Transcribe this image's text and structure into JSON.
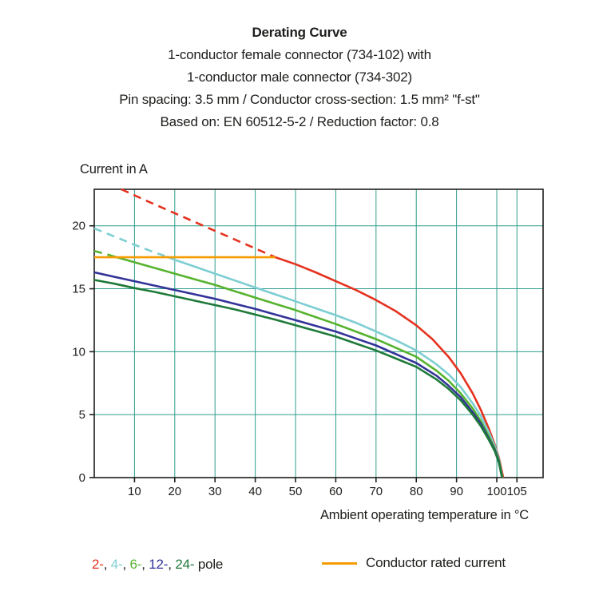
{
  "header": {
    "title": "Derating Curve",
    "subtitle_lines": [
      "1-conductor female connector (734-102) with",
      "1-conductor male connector (734-302)",
      "Pin spacing: 3.5 mm / Conductor cross-section: 1.5 mm² \"f-st\"",
      "Based on: EN 60512-5-2 / Reduction factor: 0.8"
    ]
  },
  "chart_data": {
    "type": "line",
    "title": "Derating Curve",
    "ylabel": "Current in A",
    "xlabel": "Ambient operating temperature in °C",
    "xlim": [
      0,
      111.5
    ],
    "ylim": [
      0,
      22.9
    ],
    "x_ticks": [
      10,
      20,
      30,
      40,
      50,
      60,
      70,
      80,
      90,
      100,
      105
    ],
    "y_ticks": [
      0,
      5,
      10,
      15,
      20
    ],
    "grid": true,
    "grid_color": "#2f9e8e",
    "axis_color": "#1d1d1b",
    "rated_current_a": 17.5,
    "series": [
      {
        "name": "2-pole",
        "color": "#e5321f",
        "segments": [
          {
            "style": "dashed",
            "points": [
              [
                6.7,
                22.9
              ],
              [
                15,
                21.7
              ],
              [
                25,
                20.3
              ],
              [
                35,
                18.9
              ],
              [
                45,
                17.5
              ]
            ]
          },
          {
            "style": "solid",
            "points": [
              [
                45,
                17.5
              ],
              [
                50,
                16.95
              ],
              [
                55,
                16.3
              ],
              [
                60,
                15.6
              ],
              [
                65,
                14.9
              ],
              [
                70,
                14.1
              ],
              [
                75,
                13.2
              ],
              [
                80,
                12.1
              ],
              [
                84,
                11.0
              ],
              [
                88,
                9.6
              ],
              [
                91,
                8.3
              ],
              [
                94,
                6.7
              ],
              [
                96,
                5.4
              ],
              [
                98,
                3.9
              ],
              [
                99.5,
                2.6
              ],
              [
                100.5,
                1.6
              ],
              [
                101.6,
                0
              ]
            ]
          }
        ]
      },
      {
        "name": "4-pole",
        "color": "#7dced2",
        "segments": [
          {
            "style": "dashed",
            "points": [
              [
                0,
                19.8
              ],
              [
                5,
                19.15
              ],
              [
                10,
                18.5
              ],
              [
                14,
                18.0
              ],
              [
                18,
                17.55
              ]
            ]
          },
          {
            "style": "solid",
            "points": [
              [
                18,
                17.55
              ],
              [
                20,
                17.3
              ],
              [
                25,
                16.75
              ],
              [
                30,
                16.2
              ],
              [
                35,
                15.65
              ],
              [
                40,
                15.1
              ],
              [
                45,
                14.55
              ],
              [
                50,
                14.0
              ],
              [
                55,
                13.45
              ],
              [
                60,
                12.9
              ],
              [
                65,
                12.3
              ],
              [
                70,
                11.6
              ],
              [
                75,
                10.9
              ],
              [
                80,
                10.1
              ],
              [
                85,
                9.0
              ],
              [
                88,
                8.2
              ],
              [
                91,
                7.2
              ],
              [
                94,
                5.9
              ],
              [
                96,
                4.9
              ],
              [
                98,
                3.6
              ],
              [
                99.5,
                2.5
              ],
              [
                100.5,
                1.5
              ],
              [
                101.4,
                0
              ]
            ]
          }
        ]
      },
      {
        "name": "6-pole",
        "color": "#56b32e",
        "segments": [
          {
            "style": "dashed",
            "points": [
              [
                0,
                18.0
              ],
              [
                3,
                17.75
              ],
              [
                5,
                17.55
              ]
            ]
          },
          {
            "style": "solid",
            "points": [
              [
                5,
                17.55
              ],
              [
                10,
                17.1
              ],
              [
                15,
                16.65
              ],
              [
                20,
                16.2
              ],
              [
                25,
                15.75
              ],
              [
                30,
                15.3
              ],
              [
                35,
                14.8
              ],
              [
                40,
                14.3
              ],
              [
                45,
                13.8
              ],
              [
                50,
                13.3
              ],
              [
                55,
                12.75
              ],
              [
                60,
                12.2
              ],
              [
                65,
                11.6
              ],
              [
                70,
                11.0
              ],
              [
                75,
                10.3
              ],
              [
                80,
                9.6
              ],
              [
                85,
                8.5
              ],
              [
                88,
                7.7
              ],
              [
                91,
                6.7
              ],
              [
                94,
                5.5
              ],
              [
                96,
                4.5
              ],
              [
                98,
                3.3
              ],
              [
                99.5,
                2.3
              ],
              [
                100.5,
                1.4
              ],
              [
                101.4,
                0
              ]
            ]
          }
        ]
      },
      {
        "name": "12-pole",
        "color": "#333399",
        "segments": [
          {
            "style": "solid",
            "points": [
              [
                0,
                16.3
              ],
              [
                5,
                15.95
              ],
              [
                10,
                15.6
              ],
              [
                15,
                15.25
              ],
              [
                20,
                14.9
              ],
              [
                25,
                14.55
              ],
              [
                30,
                14.2
              ],
              [
                35,
                13.8
              ],
              [
                40,
                13.4
              ],
              [
                45,
                12.95
              ],
              [
                50,
                12.5
              ],
              [
                55,
                12.05
              ],
              [
                60,
                11.6
              ],
              [
                65,
                11.05
              ],
              [
                70,
                10.5
              ],
              [
                75,
                9.8
              ],
              [
                80,
                9.1
              ],
              [
                85,
                8.1
              ],
              [
                88,
                7.3
              ],
              [
                91,
                6.4
              ],
              [
                94,
                5.2
              ],
              [
                96,
                4.3
              ],
              [
                98,
                3.1
              ],
              [
                99.5,
                2.2
              ],
              [
                100.5,
                1.3
              ],
              [
                101.3,
                0
              ]
            ]
          }
        ]
      },
      {
        "name": "24-pole",
        "color": "#1f7a3a",
        "segments": [
          {
            "style": "solid",
            "points": [
              [
                0,
                15.7
              ],
              [
                5,
                15.4
              ],
              [
                10,
                15.05
              ],
              [
                15,
                14.75
              ],
              [
                20,
                14.4
              ],
              [
                25,
                14.05
              ],
              [
                30,
                13.7
              ],
              [
                35,
                13.35
              ],
              [
                40,
                12.95
              ],
              [
                45,
                12.55
              ],
              [
                50,
                12.1
              ],
              [
                55,
                11.65
              ],
              [
                60,
                11.2
              ],
              [
                65,
                10.65
              ],
              [
                70,
                10.1
              ],
              [
                75,
                9.45
              ],
              [
                80,
                8.8
              ],
              [
                85,
                7.8
              ],
              [
                88,
                7.05
              ],
              [
                91,
                6.15
              ],
              [
                94,
                5.0
              ],
              [
                96,
                4.1
              ],
              [
                98,
                3.0
              ],
              [
                99.5,
                2.1
              ],
              [
                100.5,
                1.2
              ],
              [
                101.3,
                0
              ]
            ]
          }
        ]
      },
      {
        "name": "Conductor rated current",
        "color": "#f59c00",
        "segments": [
          {
            "style": "solid",
            "points": [
              [
                0,
                17.5
              ],
              [
                45,
                17.5
              ]
            ]
          }
        ]
      }
    ]
  },
  "legend": {
    "pole_items": [
      {
        "label": "2-",
        "color": "#e5321f"
      },
      {
        "label": "4-",
        "color": "#7dced2"
      },
      {
        "label": "6-",
        "color": "#56b32e"
      },
      {
        "label": "12-",
        "color": "#333399"
      },
      {
        "label": "24-",
        "color": "#1f7a3a"
      }
    ],
    "separator": ", ",
    "suffix": " pole",
    "rated": {
      "label": "Conductor rated current",
      "color": "#f59c00"
    }
  }
}
